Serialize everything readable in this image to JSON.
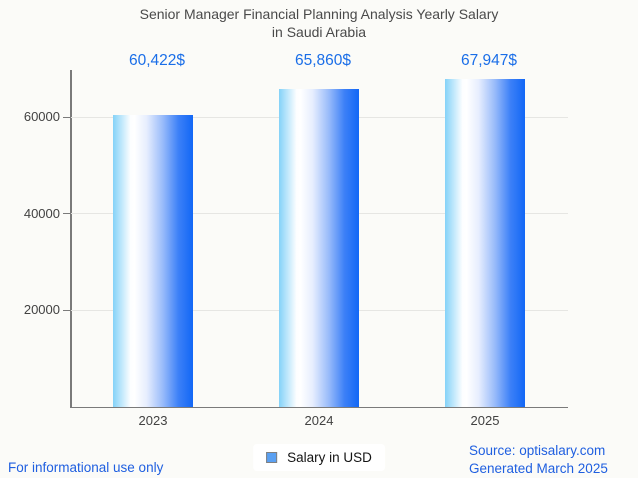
{
  "chart_data": {
    "type": "bar",
    "title_line1": "Senior Manager Financial Planning Analysis Yearly Salary",
    "title_line2": "in Saudi Arabia",
    "categories": [
      "2023",
      "2024",
      "2025"
    ],
    "values": [
      60422,
      65860,
      67947
    ],
    "value_labels": [
      "60,422$",
      "65,860$",
      "67,947$"
    ],
    "series": [
      {
        "name": "Salary in USD",
        "values": [
          60422,
          65860,
          67947
        ]
      }
    ],
    "yticks": [
      20000,
      40000,
      60000
    ],
    "ytick_labels": [
      "20000",
      "40000",
      "60000"
    ],
    "ylim": [
      0,
      69300
    ],
    "xlabel": "",
    "ylabel": "",
    "grid": "horizontal-on",
    "legend_position": "bottom-center"
  },
  "legend": {
    "label": "Salary in USD"
  },
  "footer": {
    "disclaimer": "For informational use only",
    "source": "Source: optisalary.com",
    "generated": "Generated March 2025"
  },
  "colors": {
    "background": "#fbfbf8",
    "title_text": "#4a4a4a",
    "value_label_text": "#1a6ee8",
    "tick_label_text": "#424242",
    "axis_line": "#7a7a7a",
    "gridline": "#e6e6e3",
    "bar_gradient_left": "#84d2f8",
    "bar_gradient_mid": "#ffffff",
    "bar_gradient_right": "#1267f6",
    "legend_marker_fill": "#5aa0f2",
    "legend_marker_border": "#808080",
    "footer_text": "#1f5fe0"
  }
}
